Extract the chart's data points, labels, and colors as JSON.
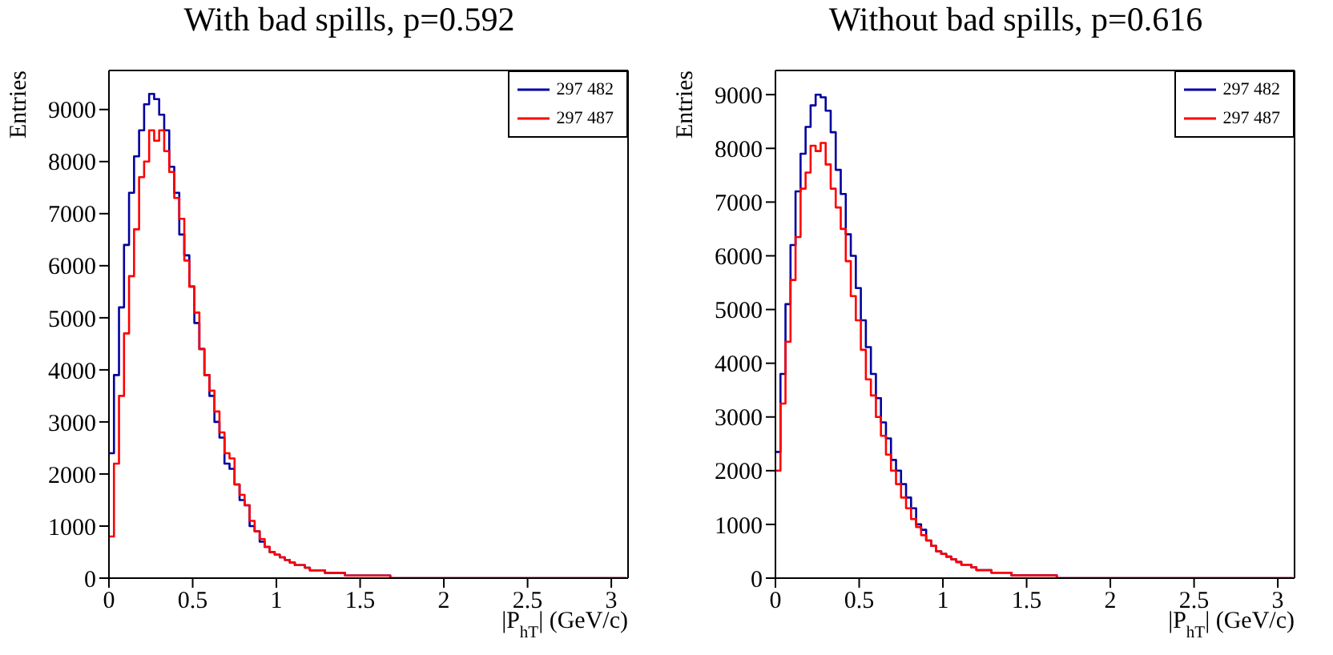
{
  "chart_data": [
    {
      "type": "histogram",
      "title": "With bad spills, p=0.592",
      "xlabel": "|P$_{hT}$| (GeV/c)",
      "ylabel": "Entries",
      "bins": [
        0,
        0.03,
        0.06,
        0.09,
        0.12,
        0.15,
        0.18,
        0.21,
        0.24,
        0.27,
        0.3,
        0.33,
        0.36,
        0.39,
        0.42,
        0.45,
        0.48,
        0.51,
        0.54,
        0.57,
        0.6,
        0.63,
        0.66,
        0.69,
        0.72,
        0.75,
        0.78,
        0.81,
        0.84,
        0.87,
        0.9,
        0.93,
        0.96,
        0.99,
        1.02,
        1.05,
        1.08,
        1.11,
        1.14,
        1.17,
        1.2,
        1.23,
        1.26,
        1.29,
        1.32,
        1.35,
        1.38,
        1.41,
        1.44,
        1.47,
        1.5,
        1.53,
        1.56,
        1.59,
        1.62,
        1.65,
        1.68,
        1.71,
        1.74,
        1.77,
        1.8,
        1.83,
        1.86,
        1.89,
        1.92,
        1.95,
        1.98,
        2.01,
        2.04,
        2.07,
        2.1,
        2.13,
        2.16,
        2.19,
        2.22,
        2.25,
        2.28,
        2.31,
        2.34,
        2.37,
        2.4,
        2.43,
        2.46,
        2.49,
        2.52,
        2.55,
        2.58,
        2.61,
        2.64,
        2.67,
        2.7,
        2.73,
        2.76,
        2.79,
        2.82,
        2.85,
        2.88,
        2.91,
        2.94,
        2.97,
        3,
        3.03,
        3.06,
        3.09
      ],
      "series": [
        {
          "name": "297 482",
          "color": "#0000a0",
          "values": [
            2400,
            3900,
            5200,
            6400,
            7400,
            8100,
            8600,
            9100,
            9300,
            9200,
            8900,
            8600,
            7900,
            7400,
            6600,
            6200,
            5600,
            4900,
            4400,
            3900,
            3500,
            3000,
            2700,
            2200,
            2100,
            1800,
            1500,
            1400,
            1000,
            900,
            700,
            600,
            500,
            450,
            400,
            350,
            300,
            250,
            250,
            200,
            150,
            150,
            150,
            100,
            100,
            100,
            100,
            50,
            50,
            50,
            50,
            50,
            50,
            50,
            50,
            50,
            0,
            0,
            0,
            0,
            0,
            0,
            0,
            0,
            0,
            0,
            0,
            0,
            0,
            0,
            0,
            0,
            0,
            0,
            0,
            0,
            0,
            0,
            0,
            0,
            0,
            0,
            0,
            0,
            0,
            0,
            0,
            0,
            0,
            0,
            0,
            0,
            0,
            0,
            0,
            0,
            0,
            0,
            0,
            0,
            0,
            0,
            0
          ]
        },
        {
          "name": "297 487",
          "color": "#ff0000",
          "values": [
            800,
            2200,
            3500,
            4700,
            5800,
            6700,
            7700,
            8000,
            8600,
            8400,
            8600,
            8200,
            7800,
            7300,
            6900,
            6100,
            5600,
            5100,
            4400,
            3900,
            3600,
            3200,
            2800,
            2400,
            2300,
            1800,
            1600,
            1400,
            1100,
            900,
            750,
            600,
            500,
            450,
            400,
            350,
            300,
            250,
            250,
            200,
            150,
            150,
            150,
            100,
            100,
            100,
            100,
            50,
            50,
            50,
            50,
            50,
            50,
            50,
            50,
            50,
            0,
            0,
            0,
            0,
            0,
            0,
            0,
            0,
            0,
            0,
            0,
            0,
            0,
            0,
            0,
            0,
            0,
            0,
            0,
            0,
            0,
            0,
            0,
            0,
            0,
            0,
            0,
            0,
            0,
            0,
            0,
            0,
            0,
            0,
            0,
            0,
            0,
            0,
            0,
            0,
            0,
            0,
            0,
            0,
            0,
            0,
            0
          ]
        }
      ],
      "xlim": [
        0,
        3.1
      ],
      "xticks": [
        0,
        0.5,
        1,
        1.5,
        2,
        2.5,
        3
      ],
      "ylim": [
        0,
        9750
      ],
      "yticks": [
        0,
        1000,
        2000,
        3000,
        4000,
        5000,
        6000,
        7000,
        8000,
        9000
      ],
      "legend": "top right",
      "grid": false
    },
    {
      "type": "histogram",
      "title": "Without bad spills, p=0.616",
      "xlabel": "|P$_{hT}$| (GeV/c)",
      "ylabel": "Entries",
      "bins": [
        0,
        0.03,
        0.06,
        0.09,
        0.12,
        0.15,
        0.18,
        0.21,
        0.24,
        0.27,
        0.3,
        0.33,
        0.36,
        0.39,
        0.42,
        0.45,
        0.48,
        0.51,
        0.54,
        0.57,
        0.6,
        0.63,
        0.66,
        0.69,
        0.72,
        0.75,
        0.78,
        0.81,
        0.84,
        0.87,
        0.9,
        0.93,
        0.96,
        0.99,
        1.02,
        1.05,
        1.08,
        1.11,
        1.14,
        1.17,
        1.2,
        1.23,
        1.26,
        1.29,
        1.32,
        1.35,
        1.38,
        1.41,
        1.44,
        1.47,
        1.5,
        1.53,
        1.56,
        1.59,
        1.62,
        1.65,
        1.68,
        1.71,
        1.74,
        1.77,
        1.8,
        1.83,
        1.86,
        1.89,
        1.92,
        1.95,
        1.98,
        2.01,
        2.04,
        2.07,
        2.1,
        2.13,
        2.16,
        2.19,
        2.22,
        2.25,
        2.28,
        2.31,
        2.34,
        2.37,
        2.4,
        2.43,
        2.46,
        2.49,
        2.52,
        2.55,
        2.58,
        2.61,
        2.64,
        2.67,
        2.7,
        2.73,
        2.76,
        2.79,
        2.82,
        2.85,
        2.88,
        2.91,
        2.94,
        2.97,
        3,
        3.03,
        3.06,
        3.09
      ],
      "series": [
        {
          "name": "297 482",
          "color": "#0000a0",
          "values": [
            2350,
            3800,
            5100,
            6200,
            7200,
            7900,
            8400,
            8800,
            9000,
            8950,
            8700,
            8300,
            7600,
            7150,
            6400,
            6000,
            5400,
            4800,
            4300,
            3800,
            3350,
            2900,
            2600,
            2200,
            2000,
            1750,
            1500,
            1300,
            1000,
            900,
            700,
            600,
            500,
            450,
            400,
            350,
            300,
            250,
            250,
            200,
            150,
            150,
            150,
            100,
            100,
            100,
            100,
            50,
            50,
            50,
            50,
            50,
            50,
            50,
            50,
            50,
            0,
            0,
            0,
            0,
            0,
            0,
            0,
            0,
            0,
            0,
            0,
            0,
            0,
            0,
            0,
            0,
            0,
            0,
            0,
            0,
            0,
            0,
            0,
            0,
            0,
            0,
            0,
            0,
            0,
            0,
            0,
            0,
            0,
            0,
            0,
            0,
            0,
            0,
            0,
            0,
            0,
            0,
            0,
            0,
            0,
            0,
            0
          ]
        },
        {
          "name": "297 487",
          "color": "#ff0000",
          "values": [
            2000,
            3250,
            4400,
            5550,
            6350,
            7250,
            7550,
            8050,
            7950,
            8100,
            7700,
            7250,
            6900,
            6500,
            5900,
            5250,
            4800,
            4250,
            3700,
            3400,
            3000,
            2650,
            2300,
            2000,
            1750,
            1500,
            1300,
            1100,
            950,
            800,
            700,
            600,
            500,
            450,
            400,
            350,
            300,
            250,
            250,
            200,
            150,
            150,
            150,
            100,
            100,
            100,
            100,
            50,
            50,
            50,
            50,
            50,
            50,
            50,
            50,
            50,
            0,
            0,
            0,
            0,
            0,
            0,
            0,
            0,
            0,
            0,
            0,
            0,
            0,
            0,
            0,
            0,
            0,
            0,
            0,
            0,
            0,
            0,
            0,
            0,
            0,
            0,
            0,
            0,
            0,
            0,
            0,
            0,
            0,
            0,
            0,
            0,
            0,
            0,
            0,
            0,
            0,
            0,
            0,
            0,
            0,
            0,
            0
          ]
        }
      ],
      "xlim": [
        0,
        3.1
      ],
      "xticks": [
        0,
        0.5,
        1,
        1.5,
        2,
        2.5,
        3
      ],
      "ylim": [
        0,
        9450
      ],
      "yticks": [
        0,
        1000,
        2000,
        3000,
        4000,
        5000,
        6000,
        7000,
        8000,
        9000
      ],
      "legend": "top right",
      "grid": false
    }
  ]
}
